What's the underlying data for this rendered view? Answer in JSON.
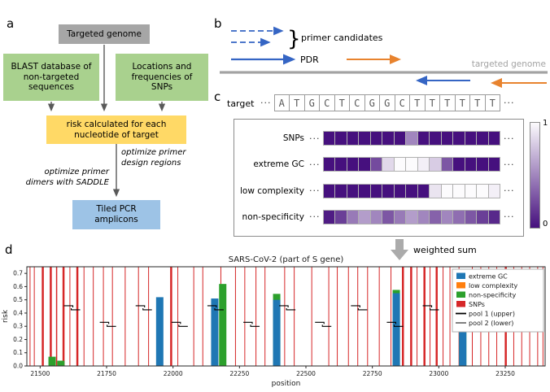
{
  "figure": {
    "panel_a": {
      "label": "a",
      "nodes": {
        "targeted_genome": "Targeted genome",
        "blast_db": "BLAST database of non-targeted sequences",
        "snp_info": "Locations and frequencies of SNPs",
        "risk_calc": "risk calculated for each nucleotide of target",
        "tiled_amplicons": "Tiled PCR amplicons"
      },
      "annotations": {
        "optimize_pdr": "optimize primer design regions",
        "optimize_dimers": "optimize primer dimers with SADDLE"
      },
      "colors": {
        "targeted_genome_bg": "#a6a6a6",
        "input_bg": "#a9d18e",
        "risk_bg": "#ffd966",
        "amplicon_bg": "#9dc3e6",
        "arrow": "#595959"
      }
    },
    "panel_b": {
      "label": "b",
      "brace": "}",
      "primer_candidates": "primer candidates",
      "pdr": "PDR",
      "targeted_genome": "targeted genome",
      "colors": {
        "pool1_primer": "#3565c4",
        "pool2_primer": "#e8832e",
        "genome": "#a3a3a3"
      }
    },
    "panel_c": {
      "label": "c",
      "target_label": "target",
      "ellipsis": "···",
      "sequence": [
        "A",
        "T",
        "G",
        "C",
        "T",
        "C",
        "G",
        "G",
        "C",
        "T",
        "T",
        "T",
        "T",
        "T",
        "T"
      ],
      "risk_rows": [
        {
          "label": "SNPs",
          "values": [
            0,
            0,
            0,
            0,
            0,
            0,
            0,
            0.5,
            0,
            0,
            0,
            0,
            0,
            0,
            0
          ]
        },
        {
          "label": "extreme GC",
          "values": [
            0,
            0,
            0,
            0,
            0.25,
            0.85,
            1,
            1,
            0.95,
            0.8,
            0.3,
            0,
            0,
            0,
            0
          ]
        },
        {
          "label": "low complexity",
          "values": [
            0,
            0,
            0,
            0,
            0,
            0,
            0,
            0,
            0,
            0.9,
            1,
            1,
            1,
            1,
            0.95
          ]
        },
        {
          "label": "non-specificity",
          "values": [
            0.05,
            0.2,
            0.45,
            0.6,
            0.5,
            0.3,
            0.45,
            0.6,
            0.5,
            0.35,
            0.5,
            0.4,
            0.3,
            0.2,
            0.1
          ]
        }
      ],
      "colorbar": {
        "max_label": "1",
        "min_label": "0",
        "color_high": "#fcfbfd",
        "color_low": "#46107e"
      }
    },
    "weighted_sum": {
      "label": "weighted sum",
      "arrow_color": "#ababab"
    },
    "panel_d": {
      "label": "d"
    }
  },
  "chart_data": {
    "type": "bar",
    "title": "SARS-CoV-2 (part of S gene)",
    "xlabel": "position",
    "ylabel": "risk",
    "xlim": [
      21450,
      23400
    ],
    "ylim": [
      0,
      0.75
    ],
    "xticks": [
      21500,
      21750,
      22000,
      22250,
      22500,
      22750,
      23000,
      23250
    ],
    "yticks": [
      0,
      0.1,
      0.2,
      0.3,
      0.4,
      0.5,
      0.6,
      0.7
    ],
    "grid": false,
    "legend_position": "upper right",
    "series_colors": {
      "extreme GC": "#1f77b4",
      "low complexity": "#ff7f0e",
      "non-specificity": "#2ca02c",
      "SNPs": "#d62728",
      "pools": "#000000"
    },
    "legend": [
      {
        "label": "extreme GC",
        "swatch": "patch",
        "color": "#1f77b4"
      },
      {
        "label": "low complexity",
        "swatch": "patch",
        "color": "#ff7f0e"
      },
      {
        "label": "non-specificity",
        "swatch": "patch",
        "color": "#2ca02c"
      },
      {
        "label": "SNPs",
        "swatch": "patch",
        "color": "#d62728"
      },
      {
        "label": "pool 1 (upper)",
        "swatch": "line",
        "color": "#000000",
        "lw": 1.8
      },
      {
        "label": "pool 2 (lower)",
        "swatch": "line",
        "color": "#000000",
        "lw": 1.0
      }
    ],
    "snp_lines": [
      [
        21462,
        1
      ],
      [
        21478,
        1
      ],
      [
        21510,
        2.5
      ],
      [
        21540,
        2.5
      ],
      [
        21562,
        1.5
      ],
      [
        21588,
        2.5
      ],
      [
        21612,
        1
      ],
      [
        21640,
        2.5
      ],
      [
        21665,
        1
      ],
      [
        21700,
        1
      ],
      [
        21738,
        1
      ],
      [
        21772,
        1
      ],
      [
        21820,
        1
      ],
      [
        21870,
        1
      ],
      [
        21908,
        1
      ],
      [
        21993,
        2.5
      ],
      [
        22018,
        1
      ],
      [
        22078,
        1
      ],
      [
        22112,
        1
      ],
      [
        22180,
        1
      ],
      [
        22235,
        1
      ],
      [
        22270,
        1
      ],
      [
        22312,
        1
      ],
      [
        22346,
        1
      ],
      [
        22420,
        1
      ],
      [
        22456,
        1
      ],
      [
        22522,
        1
      ],
      [
        22586,
        1
      ],
      [
        22618,
        1
      ],
      [
        22660,
        1
      ],
      [
        22695,
        1
      ],
      [
        22732,
        1
      ],
      [
        22776,
        1
      ],
      [
        22820,
        1
      ],
      [
        22865,
        2.5
      ],
      [
        22896,
        2.5
      ],
      [
        22918,
        1
      ],
      [
        22946,
        2.5
      ],
      [
        22967,
        1
      ],
      [
        22992,
        2.5
      ],
      [
        23016,
        1
      ],
      [
        23042,
        1
      ],
      [
        23076,
        1
      ],
      [
        23126,
        1
      ],
      [
        23158,
        1
      ],
      [
        23188,
        1
      ],
      [
        23218,
        1
      ],
      [
        23252,
        2.5
      ],
      [
        23282,
        1
      ],
      [
        23312,
        1
      ],
      [
        23342,
        1
      ],
      [
        23372,
        1
      ],
      [
        23392,
        1
      ]
    ],
    "bars": [
      {
        "pos": 21545,
        "h": 0.07,
        "series": "non-specificity"
      },
      {
        "pos": 21578,
        "h": 0.04,
        "series": "non-specificity"
      },
      {
        "pos": 21950,
        "h": 0.52,
        "series": "extreme GC"
      },
      {
        "pos": 22157,
        "h": 0.51,
        "series": "extreme GC"
      },
      {
        "pos": 22187,
        "h": 0.62,
        "series": "non-specificity"
      },
      {
        "pos": 22390,
        "h": 0.545,
        "series": "non-specificity"
      },
      {
        "pos": 22390,
        "h": 0.5,
        "series": "extreme GC"
      },
      {
        "pos": 22840,
        "h": 0.575,
        "series": "non-specificity"
      },
      {
        "pos": 22840,
        "h": 0.55,
        "series": "extreme GC"
      },
      {
        "pos": 23090,
        "h": 0.58,
        "series": "non-specificity"
      },
      {
        "pos": 23090,
        "h": 0.55,
        "series": "extreme GC"
      }
    ],
    "amplicons": {
      "pool1_y": 0.455,
      "pool2_y": 0.33,
      "markers": [
        [
          21620,
          1
        ],
        [
          21755,
          2
        ],
        [
          21890,
          1
        ],
        [
          22025,
          2
        ],
        [
          22160,
          1
        ],
        [
          22295,
          2
        ],
        [
          22430,
          1
        ],
        [
          22565,
          2
        ],
        [
          22700,
          1
        ],
        [
          22835,
          2
        ],
        [
          22970,
          1
        ],
        [
          23105,
          2
        ],
        [
          23240,
          1
        ]
      ]
    }
  }
}
